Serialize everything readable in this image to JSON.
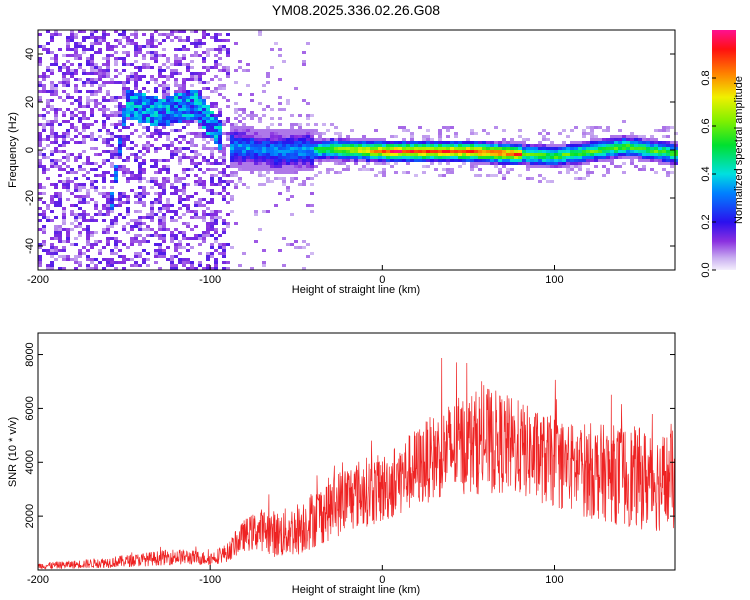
{
  "title": "YM08.2025.336.02.26.G08",
  "chart_data": [
    {
      "type": "heatmap",
      "xlabel": "Height of straight line (km)",
      "ylabel": "Frequency (Hz)",
      "xlim": [
        -200,
        170
      ],
      "ylim": [
        -50,
        50
      ],
      "xticks": [
        -200,
        -100,
        0,
        100
      ],
      "yticks": [
        -40,
        -20,
        0,
        20,
        40
      ],
      "ridge": [
        {
          "x": -150,
          "y": 20
        },
        {
          "x": -130,
          "y": 16
        },
        {
          "x": -110,
          "y": 20
        },
        {
          "x": -90,
          "y": 2
        },
        {
          "x": -60,
          "y": 0
        },
        {
          "x": -30,
          "y": 1
        },
        {
          "x": 0,
          "y": 0
        },
        {
          "x": 50,
          "y": 0
        },
        {
          "x": 100,
          "y": -2
        },
        {
          "x": 140,
          "y": 2
        },
        {
          "x": 170,
          "y": -1
        }
      ],
      "colorbar": {
        "label": "Normalized spectral amplitude",
        "range": [
          0.0,
          1.0
        ],
        "ticks": [
          "0.0",
          "0.2",
          "0.4",
          "0.6",
          "0.8"
        ]
      }
    },
    {
      "type": "line",
      "xlabel": "Height of straight line (km)",
      "ylabel": "SNR (10 * v/v)",
      "xlim": [
        -200,
        170
      ],
      "ylim": [
        0,
        8800
      ],
      "xticks": [
        -200,
        -100,
        0,
        100
      ],
      "yticks": [
        2000,
        4000,
        6000,
        8000
      ],
      "color": "#ee2222",
      "series": [
        {
          "name": "SNR",
          "x": [
            -200,
            -180,
            -160,
            -140,
            -120,
            -100,
            -90,
            -80,
            -70,
            -60,
            -50,
            -40,
            -30,
            -20,
            -10,
            0,
            10,
            20,
            30,
            40,
            50,
            60,
            70,
            80,
            90,
            100,
            110,
            120,
            130,
            140,
            150,
            160,
            170
          ],
          "y": [
            150,
            200,
            280,
            380,
            500,
            420,
            650,
            1300,
            1500,
            1300,
            1500,
            1900,
            2300,
            2700,
            2900,
            3000,
            3400,
            3800,
            4200,
            4500,
            4700,
            4800,
            4700,
            4500,
            4200,
            4000,
            3800,
            3700,
            3600,
            3500,
            3400,
            3300,
            3300
          ],
          "spread": [
            120,
            150,
            200,
            250,
            300,
            250,
            350,
            600,
            800,
            900,
            1000,
            1100,
            1200,
            1300,
            1300,
            1300,
            1400,
            1500,
            1600,
            1800,
            1900,
            2000,
            1900,
            1800,
            1700,
            1700,
            1700,
            1800,
            1800,
            1900,
            1900,
            1900,
            1900
          ]
        }
      ]
    }
  ]
}
